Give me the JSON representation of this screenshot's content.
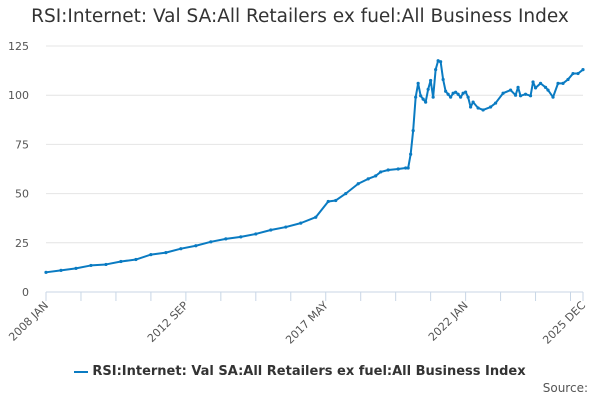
{
  "title": "RSI:Internet: Val SA:All Retailers ex fuel:All Business Index",
  "source_label": "Source:",
  "chart_data": {
    "type": "line",
    "title": "RSI:Internet: Val SA:All Retailers ex fuel:All Business Index",
    "xlabel": "",
    "ylabel": "",
    "ylim": [
      0,
      125
    ],
    "yticks": [
      0,
      25,
      50,
      75,
      100,
      125
    ],
    "xlim": [
      "2008-01",
      "2025-12"
    ],
    "xtick_labels": [
      "2008 JAN",
      "2012 SEP",
      "2017 MAY",
      "2022 JAN",
      "2025 DEC"
    ],
    "grid": "horizontal",
    "legend": "bottom",
    "color": "#0a7bc2",
    "series": [
      {
        "name": "RSI:Internet: Val SA:All Retailers ex fuel:All Business Index",
        "points": [
          [
            "2008-01",
            10
          ],
          [
            "2008-07",
            11
          ],
          [
            "2009-01",
            12
          ],
          [
            "2009-07",
            13.5
          ],
          [
            "2010-01",
            14
          ],
          [
            "2010-07",
            15.5
          ],
          [
            "2011-01",
            16.5
          ],
          [
            "2011-07",
            19
          ],
          [
            "2012-01",
            20
          ],
          [
            "2012-07",
            22
          ],
          [
            "2013-01",
            23.5
          ],
          [
            "2013-07",
            25.5
          ],
          [
            "2014-01",
            27
          ],
          [
            "2014-07",
            28
          ],
          [
            "2015-01",
            29.5
          ],
          [
            "2015-07",
            31.5
          ],
          [
            "2016-01",
            33
          ],
          [
            "2016-07",
            35
          ],
          [
            "2017-01",
            38
          ],
          [
            "2017-06",
            46
          ],
          [
            "2017-09",
            46.5
          ],
          [
            "2018-01",
            50
          ],
          [
            "2018-06",
            55
          ],
          [
            "2018-10",
            57.5
          ],
          [
            "2019-01",
            59
          ],
          [
            "2019-03",
            61
          ],
          [
            "2019-06",
            62
          ],
          [
            "2019-10",
            62.5
          ],
          [
            "2020-01",
            63
          ],
          [
            "2020-02",
            63
          ],
          [
            "2020-03",
            70
          ],
          [
            "2020-04",
            82
          ],
          [
            "2020-05",
            99
          ],
          [
            "2020-06",
            106
          ],
          [
            "2020-07",
            99.7
          ],
          [
            "2020-08",
            98
          ],
          [
            "2020-09",
            96.5
          ],
          [
            "2020-10",
            103
          ],
          [
            "2020-11",
            107.5
          ],
          [
            "2020-12",
            99
          ],
          [
            "2021-01",
            113
          ],
          [
            "2021-02",
            117.5
          ],
          [
            "2021-03",
            117
          ],
          [
            "2021-04",
            108
          ],
          [
            "2021-05",
            102
          ],
          [
            "2021-06",
            100.5
          ],
          [
            "2021-07",
            99
          ],
          [
            "2021-08",
            101
          ],
          [
            "2021-09",
            101.5
          ],
          [
            "2021-10",
            100.5
          ],
          [
            "2021-11",
            99
          ],
          [
            "2021-12",
            101
          ],
          [
            "2022-01",
            101.6
          ],
          [
            "2022-02",
            99
          ],
          [
            "2022-03",
            94
          ],
          [
            "2022-04",
            96.5
          ],
          [
            "2022-06",
            93.5
          ],
          [
            "2022-08",
            92.5
          ],
          [
            "2022-11",
            94
          ],
          [
            "2023-01",
            96
          ],
          [
            "2023-04",
            101
          ],
          [
            "2023-07",
            102.6
          ],
          [
            "2023-09",
            100
          ],
          [
            "2023-10",
            104
          ],
          [
            "2023-11",
            99.7
          ],
          [
            "2024-01",
            100.5
          ],
          [
            "2024-03",
            99.7
          ],
          [
            "2024-04",
            106.7
          ],
          [
            "2024-05",
            103.7
          ],
          [
            "2024-07",
            106
          ],
          [
            "2024-09",
            104
          ],
          [
            "2024-10",
            102.6
          ],
          [
            "2024-12",
            99
          ],
          [
            "2025-02",
            106
          ],
          [
            "2025-04",
            106
          ],
          [
            "2025-06",
            108
          ],
          [
            "2025-08",
            111
          ],
          [
            "2025-10",
            111
          ],
          [
            "2025-12",
            113
          ]
        ]
      }
    ]
  }
}
